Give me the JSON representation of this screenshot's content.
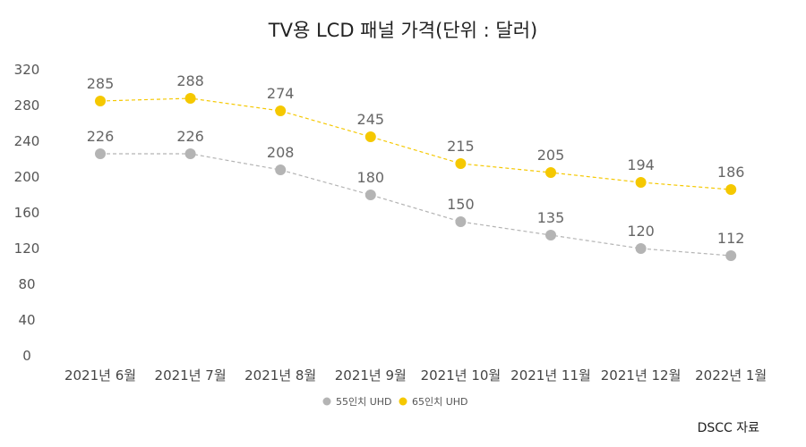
{
  "chart_data": {
    "type": "line",
    "title": "TV용 LCD 패널 가격(단위 : 달러)",
    "categories": [
      "2021년 6월",
      "2021년 7월",
      "2021년 8월",
      "2021년 9월",
      "2021년 10월",
      "2021년 11월",
      "2021년 12월",
      "2022년 1월"
    ],
    "series": [
      {
        "name": "55인치 UHD",
        "values": [
          226,
          226,
          208,
          180,
          150,
          135,
          120,
          112
        ],
        "color": "#b4b4b4"
      },
      {
        "name": "65인치 UHD",
        "values": [
          285,
          288,
          274,
          245,
          215,
          205,
          194,
          186
        ],
        "color": "#f5c800"
      }
    ],
    "y_ticks": [
      0,
      40,
      80,
      120,
      160,
      200,
      240,
      280,
      320
    ],
    "ylim": [
      0,
      320
    ],
    "grid": false,
    "legend_position": "bottom",
    "line_style": "dashed",
    "data_labels": true
  },
  "source_note": "DSCC 자료"
}
